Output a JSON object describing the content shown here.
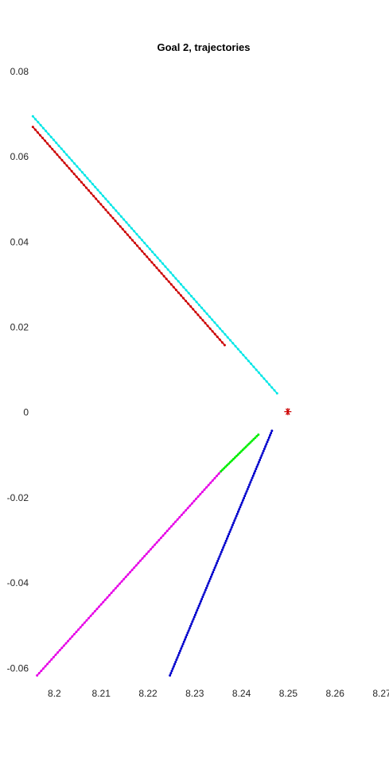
{
  "chart_data": {
    "type": "line",
    "title": "Goal 2, trajectories",
    "xlabel": "",
    "ylabel": "",
    "xlim": [
      8.195,
      8.27
    ],
    "ylim": [
      -0.062,
      0.08
    ],
    "x_ticks": [
      "8.2",
      "8.21",
      "8.22",
      "8.23",
      "8.24",
      "8.25",
      "8.26",
      "8.27"
    ],
    "y_ticks": [
      "0.08",
      "0.06",
      "0.04",
      "0.02",
      "0",
      "-0.02",
      "-0.04",
      "-0.06"
    ],
    "grid": false,
    "axes_visible": false,
    "goal_marker": {
      "x": 8.2499,
      "y": 0.0002,
      "marker": "asterisk",
      "color": "#cc0000"
    },
    "series": [
      {
        "color": "#00e6e6",
        "marker": "dot",
        "x": [
          8.1954,
          8.2476
        ],
        "y": [
          0.0695,
          0.0045
        ],
        "n_points": 95
      },
      {
        "color": "#cc0000",
        "marker": "dot",
        "x": [
          8.1954,
          8.2364
        ],
        "y": [
          0.067,
          0.0158
        ],
        "n_points": 80
      },
      {
        "color": "#e600e6",
        "marker": "dot",
        "x": [
          8.1963,
          8.2356
        ],
        "y": [
          -0.0617,
          -0.0138
        ],
        "n_points": 90
      },
      {
        "color": "#00ee00",
        "marker": "dot",
        "x": [
          8.2356,
          8.2436
        ],
        "y": [
          -0.0138,
          -0.0052
        ],
        "n_points": 25
      },
      {
        "color": "#0000cc",
        "marker": "dot",
        "x": [
          8.2247,
          8.2465
        ],
        "y": [
          -0.0617,
          -0.0043
        ],
        "n_points": 110
      }
    ]
  }
}
